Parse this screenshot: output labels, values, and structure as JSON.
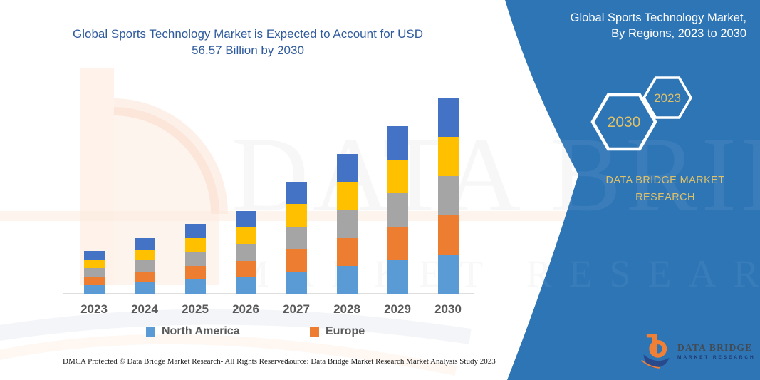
{
  "colors": {
    "panel_blue": "#2E75B6",
    "gold": "#DFC169",
    "title_blue": "#2F5B9D",
    "axis_label_gray": "#595959",
    "axis_line_gray": "#DEDEDE",
    "logo_orange": "#F08036",
    "logo_navy": "#284A8C"
  },
  "left_title": {
    "line1": "Global Sports Technology Market is Expected to Account for USD",
    "line2": "56.57 Billion by 2030"
  },
  "right_panel": {
    "title_line1": "Global Sports Technology Market,",
    "title_line2": "By Regions, 2023 to 2030",
    "hexagon_big_label": "2030",
    "hexagon_small_label": "2023",
    "brand_line1": "DATA BRIDGE MARKET",
    "brand_line2": "RESEARCH"
  },
  "chart_data": {
    "type": "bar",
    "stacked": true,
    "title": "Global Sports Technology Market is Expected to Account for USD 56.57 Billion by 2030",
    "xlabel": "",
    "ylabel": "",
    "units": "USD billion (estimated from bar heights; 2030 total anchored to 56.57)",
    "categories": [
      "2023",
      "2024",
      "2025",
      "2026",
      "2027",
      "2028",
      "2029",
      "2030"
    ],
    "series": [
      {
        "name": "North America",
        "color": "#5B9BD5",
        "values": [
          2.47,
          3.21,
          4.03,
          4.77,
          6.46,
          8.06,
          9.67,
          11.314
        ]
      },
      {
        "name": "Europe",
        "color": "#ED7D31",
        "values": [
          2.47,
          3.21,
          4.03,
          4.77,
          6.46,
          8.06,
          9.67,
          11.314
        ]
      },
      {
        "name": "unlabeled-gray-segment",
        "color": "#A5A5A5",
        "values": [
          2.47,
          3.21,
          4.03,
          4.77,
          6.46,
          8.06,
          9.67,
          11.314
        ]
      },
      {
        "name": "unlabeled-yellow-segment",
        "color": "#FFC000",
        "values": [
          2.47,
          3.21,
          4.03,
          4.77,
          6.46,
          8.06,
          9.67,
          11.314
        ]
      },
      {
        "name": "unlabeled-darkblue-segment",
        "color": "#4472C4",
        "values": [
          2.47,
          3.21,
          4.03,
          4.77,
          6.46,
          8.06,
          9.67,
          11.314
        ]
      }
    ],
    "totals_estimated": [
      12.35,
      16.05,
      20.15,
      23.85,
      32.3,
      40.3,
      48.35,
      56.57
    ],
    "ylim": [
      0,
      60
    ],
    "grid": false,
    "legend_position": "bottom",
    "legend_visible_entries": [
      "North America",
      "Europe"
    ]
  },
  "legend": [
    {
      "label": "North America",
      "color": "#5B9BD5"
    },
    {
      "label": "Europe",
      "color": "#ED7D31"
    }
  ],
  "footer": {
    "left": "DMCA Protected © Data Bridge Market Research-  All Rights Reserved.",
    "source": "Source: Data Bridge Market Research  Market Analysis Study 2023"
  },
  "logo": {
    "name": "DATA BRIDGE",
    "subtitle": "MARKET RESEARCH"
  },
  "watermark": {
    "text1": "DATA BRIDGE",
    "text2": "MARKET RESEARCH"
  }
}
